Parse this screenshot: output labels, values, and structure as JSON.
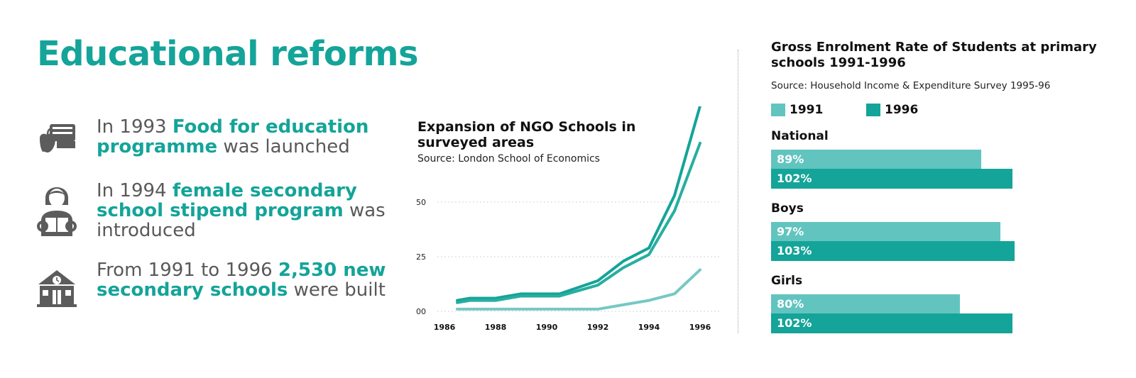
{
  "page": {
    "title": "Educational reforms"
  },
  "reforms": [
    {
      "icon": "apple-books-icon",
      "before": "In 1993 ",
      "highlight": "Food for education programme",
      "after": " was launched"
    },
    {
      "icon": "student-reading-icon",
      "before": "In 1994 ",
      "highlight": "female secondary school stipend program",
      "after": " was introduced"
    },
    {
      "icon": "school-building-icon",
      "before": "From 1991 to 1996 ",
      "highlight": "2,530 new secondary schools",
      "after": " were built"
    }
  ],
  "colors": {
    "accent": "#14a499",
    "light": "#62c4bf",
    "gray": "#595959"
  },
  "chart_data": [
    {
      "type": "line",
      "title": "Expansion of NGO Schools in surveyed areas",
      "source": "Source: London School of Economics",
      "x": [
        1986,
        1987,
        1988,
        1989,
        1990,
        1991,
        1992,
        1993,
        1994,
        1995,
        1996
      ],
      "xticks": [
        "1986",
        "1988",
        "1990",
        "1992",
        "1994",
        "1996"
      ],
      "yticks": [
        "00",
        "25",
        "50"
      ],
      "ylim": [
        0,
        95
      ],
      "grid": true,
      "series": [
        {
          "values": [
            5,
            6,
            6,
            8,
            8,
            14,
            23,
            29,
            53,
            94
          ],
          "x": [
            1986.5,
            1987,
            1988,
            1989,
            1990.5,
            1992,
            1993,
            1994,
            1995,
            1996
          ],
          "color": "#14a499"
        },
        {
          "values": [
            4,
            5,
            5,
            7,
            7,
            12,
            20,
            26,
            46,
            77
          ],
          "x": [
            1986.5,
            1987,
            1988,
            1989,
            1990.5,
            1992,
            1993,
            1994,
            1995,
            1996
          ],
          "color": "#28ae9f"
        },
        {
          "values": [
            1,
            1,
            1,
            1,
            1,
            1,
            3,
            5,
            8,
            19
          ],
          "x": [
            1986.5,
            1987,
            1988,
            1989,
            1990.5,
            1992,
            1993,
            1994,
            1995,
            1996
          ],
          "color": "#74c9c3"
        }
      ]
    },
    {
      "type": "bar",
      "orientation": "horizontal",
      "title": "Gross Enrolment Rate of Students at primary schools 1991-1996",
      "source": "Source: Household Income & Expenditure Survey 1995-96",
      "legend": [
        {
          "name": "1991",
          "color": "#62c4bf"
        },
        {
          "name": "1996",
          "color": "#14a499"
        }
      ],
      "xlim": [
        0,
        120
      ],
      "categories": [
        "National",
        "Boys",
        "Girls"
      ],
      "series": [
        {
          "name": "1991",
          "values": [
            89,
            97,
            80
          ],
          "labels": [
            "89%",
            "97%",
            "80%"
          ]
        },
        {
          "name": "1996",
          "values": [
            102,
            103,
            102
          ],
          "labels": [
            "102%",
            "103%",
            "102%"
          ]
        }
      ]
    }
  ]
}
